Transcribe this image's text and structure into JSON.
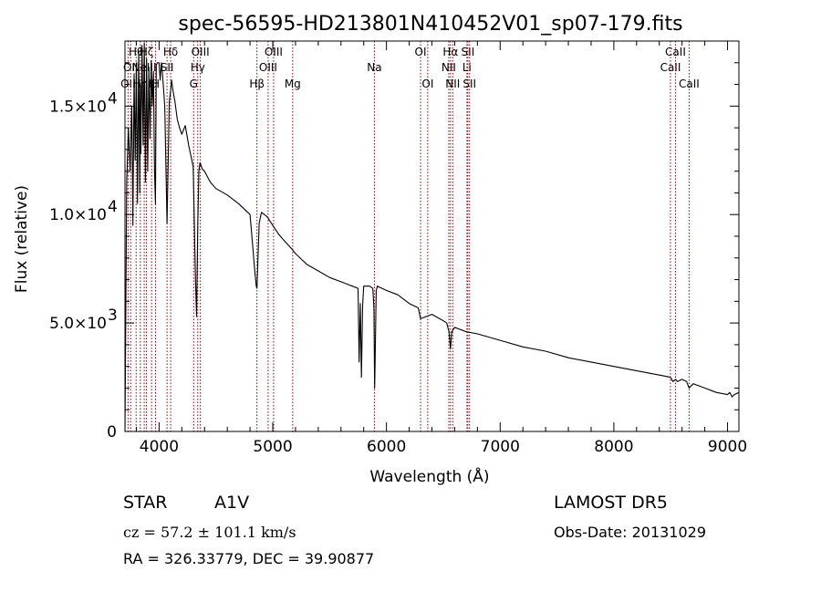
{
  "chart_data": {
    "type": "line",
    "title": "spec-56595-HD213801N410452V01_sp07-179.fits",
    "xlabel": "Wavelength (Å)",
    "ylabel": "Flux (relative)",
    "xlim": [
      3700,
      9100
    ],
    "ylim": [
      0,
      18000
    ],
    "x_ticks": [
      4000,
      5000,
      6000,
      7000,
      8000,
      9000
    ],
    "x_tick_labels": [
      "4000",
      "5000",
      "6000",
      "7000",
      "8000",
      "9000"
    ],
    "y_ticks": [
      {
        "value": 0,
        "mantissa": "0",
        "exp": ""
      },
      {
        "value": 5000,
        "mantissa": "5.0×10",
        "exp": "3"
      },
      {
        "value": 10000,
        "mantissa": "1.0×10",
        "exp": "4"
      },
      {
        "value": 15000,
        "mantissa": "1.5×10",
        "exp": "4"
      }
    ],
    "grid": false,
    "series": [
      {
        "color": "#000000",
        "x": [
          3700,
          3715,
          3730,
          3745,
          3760,
          3770,
          3780,
          3790,
          3800,
          3810,
          3820,
          3830,
          3835,
          3840,
          3850,
          3860,
          3870,
          3880,
          3890,
          3900,
          3910,
          3920,
          3930,
          3940,
          3950,
          3960,
          3968,
          3975,
          3985,
          4000,
          4010,
          4020,
          4030,
          4050,
          4070,
          4090,
          4101,
          4110,
          4120,
          4140,
          4160,
          4180,
          4200,
          4230,
          4260,
          4300,
          4320,
          4330,
          4340,
          4350,
          4360,
          4380,
          4400,
          4450,
          4500,
          4600,
          4700,
          4800,
          4840,
          4855,
          4861,
          4867,
          4880,
          4900,
          4950,
          5000,
          5050,
          5100,
          5170,
          5200,
          5300,
          5400,
          5500,
          5600,
          5700,
          5750,
          5760,
          5770,
          5780,
          5790,
          5800,
          5850,
          5880,
          5890,
          5896,
          5900,
          5910,
          5920,
          6000,
          6100,
          6200,
          6280,
          6300,
          6400,
          6500,
          6530,
          6550,
          6563,
          6575,
          6600,
          6700,
          6800,
          7000,
          7200,
          7400,
          7600,
          7800,
          8000,
          8200,
          8400,
          8498,
          8520,
          8542,
          8560,
          8600,
          8640,
          8662,
          8700,
          8800,
          8900,
          9000,
          9020,
          9040,
          9060,
          9100
        ],
        "y": [
          0,
          11500,
          14000,
          12000,
          15000,
          9500,
          16500,
          12500,
          17000,
          10500,
          17500,
          11000,
          16000,
          12800,
          17800,
          13200,
          17900,
          11500,
          17200,
          12000,
          16800,
          13500,
          17100,
          15000,
          16600,
          12000,
          10500,
          16900,
          17000,
          17000,
          16200,
          17000,
          16500,
          15000,
          9600,
          15200,
          15700,
          16200,
          15800,
          15200,
          14400,
          14000,
          13700,
          14100,
          13200,
          12200,
          7000,
          5300,
          9500,
          12000,
          12400,
          12100,
          12000,
          11500,
          11200,
          10900,
          10500,
          10000,
          7500,
          6700,
          6600,
          7500,
          9600,
          10100,
          9900,
          9500,
          9100,
          8800,
          8400,
          8200,
          7700,
          7400,
          7100,
          6900,
          6700,
          6600,
          3200,
          5900,
          2500,
          5800,
          6700,
          6700,
          6600,
          5700,
          2000,
          3200,
          6500,
          6700,
          6500,
          6300,
          5900,
          5700,
          5200,
          5400,
          5100,
          5000,
          4600,
          3800,
          4600,
          4800,
          4600,
          4500,
          4200,
          3900,
          3700,
          3400,
          3200,
          3000,
          2800,
          2600,
          2500,
          2300,
          2400,
          2300,
          2400,
          2300,
          2000,
          2200,
          2000,
          1800,
          1700,
          1800,
          1600,
          1700,
          1800
        ]
      }
    ],
    "spectral_lines": [
      {
        "wl": 3727,
        "label": "OII",
        "row": 3
      },
      {
        "wl": 3750,
        "label": "OII",
        "row": 2
      },
      {
        "wl": 3798,
        "label": "Hθ",
        "row": 1
      },
      {
        "wl": 3835,
        "label": "Hη",
        "row": 3
      },
      {
        "wl": 3869,
        "label": "NeIII",
        "row": 2
      },
      {
        "wl": 3889,
        "label": "Hζ",
        "row": 1
      },
      {
        "wl": 3934,
        "label": "K",
        "row": 3
      },
      {
        "wl": 3969,
        "label": "H",
        "row": 3
      },
      {
        "wl": 4070,
        "label": "SII",
        "row": 2
      },
      {
        "wl": 4102,
        "label": "Hδ",
        "row": 1
      },
      {
        "wl": 4304,
        "label": "G",
        "row": 3
      },
      {
        "wl": 4340,
        "label": "Hγ",
        "row": 2
      },
      {
        "wl": 4363,
        "label": "OIII",
        "row": 1
      },
      {
        "wl": 4861,
        "label": "Hβ",
        "row": 3
      },
      {
        "wl": 4959,
        "label": "OIII",
        "row": 2
      },
      {
        "wl": 5007,
        "label": "OIII",
        "row": 1
      },
      {
        "wl": 5175,
        "label": "Mg",
        "row": 3
      },
      {
        "wl": 5894,
        "label": "Na",
        "row": 2
      },
      {
        "wl": 6300,
        "label": "OI",
        "row": 1
      },
      {
        "wl": 6363,
        "label": "OI",
        "row": 3
      },
      {
        "wl": 6548,
        "label": "NII",
        "row": 2
      },
      {
        "wl": 6563,
        "label": "Hα",
        "row": 1
      },
      {
        "wl": 6583,
        "label": "NII",
        "row": 3
      },
      {
        "wl": 6708,
        "label": "Li",
        "row": 2
      },
      {
        "wl": 6716,
        "label": "SII",
        "row": 1
      },
      {
        "wl": 6731,
        "label": "SII",
        "row": 3
      },
      {
        "wl": 8498,
        "label": "CaII",
        "row": 2
      },
      {
        "wl": 8542,
        "label": "CaII",
        "row": 1
      },
      {
        "wl": 8662,
        "label": "CaII",
        "row": 3
      }
    ],
    "line_color": "#8b0000"
  },
  "info": {
    "class": "STAR",
    "subclass": "A1V",
    "survey": "LAMOST DR5",
    "cz": "cz = 57.2 ± 101.1 km/s",
    "obs_date": "Obs-Date: 20131029",
    "coords": "RA = 326.33779, DEC =  39.90877"
  }
}
